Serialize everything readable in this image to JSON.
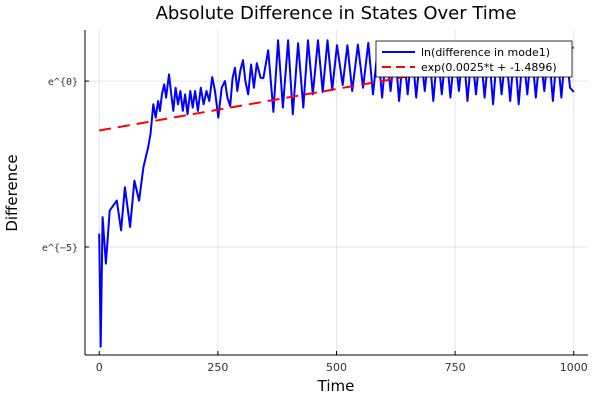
{
  "chart_data": {
    "type": "line",
    "title": "Absolute Difference in States Over Time",
    "xlabel": "Time",
    "ylabel": "Difference",
    "xlim": [
      -30,
      1030
    ],
    "ylim": [
      0.00026,
      4.66
    ],
    "yscale": "log",
    "grid": true,
    "legend_position": "top-right",
    "x_ticks": [
      0,
      250,
      500,
      750,
      1000
    ],
    "x_tick_labels": [
      "0",
      "250",
      "500",
      "750",
      "1000"
    ],
    "y_ticks": [
      1,
      0.006738
    ],
    "y_tick_labels": [
      "e^{0}",
      "e^{−5}"
    ],
    "series": [
      {
        "name": "ln(difference in mode1)",
        "color": "#0000ff",
        "style": "solid",
        "x": [
          0,
          3,
          7,
          14,
          22,
          37,
          46,
          54,
          65,
          74,
          84,
          93,
          103,
          108,
          114,
          119,
          124,
          128,
          132,
          137,
          141,
          147,
          151,
          156,
          161,
          166,
          171,
          176,
          181,
          186,
          192,
          197,
          202,
          208,
          214,
          220,
          226,
          232,
          238,
          244,
          251,
          258,
          265,
          270,
          276,
          281,
          286,
          291,
          297,
          303,
          308,
          314,
          320,
          326,
          332,
          340,
          346,
          356,
          367,
          377,
          387,
          398,
          408,
          419,
          430,
          440,
          450,
          461,
          471,
          481,
          491,
          501,
          513,
          523,
          533,
          545,
          556,
          567,
          577,
          587,
          596,
          605,
          614,
          623,
          632,
          641,
          650,
          659,
          668,
          677,
          686,
          695,
          704,
          713,
          722,
          731,
          740,
          749,
          758,
          767,
          776,
          785,
          794,
          803,
          812,
          821,
          830,
          839,
          848,
          857,
          866,
          875,
          884,
          893,
          902,
          911,
          920,
          929,
          938,
          947,
          956,
          965,
          974,
          983,
          992,
          1000
        ],
        "y": [
          0.0101,
          0.000335,
          0.0166,
          0.00409,
          0.0202,
          0.0273,
          0.0111,
          0.0408,
          0.0123,
          0.0498,
          0.0273,
          0.0743,
          0.135,
          0.202,
          0.497,
          0.333,
          0.549,
          0.407,
          0.67,
          0.905,
          0.607,
          1.221,
          0.741,
          0.407,
          0.819,
          0.497,
          0.741,
          0.407,
          0.67,
          0.368,
          0.741,
          0.449,
          0.741,
          0.407,
          0.819,
          0.497,
          0.741,
          0.549,
          1.127,
          0.741,
          0.333,
          0.819,
          1.0,
          0.607,
          0.472,
          1.105,
          1.492,
          0.741,
          1.35,
          1.878,
          1.0,
          0.67,
          1.649,
          0.819,
          1.716,
          1.105,
          1.094,
          2.535,
          0.395,
          3.421,
          0.449,
          3.421,
          0.368,
          3.127,
          0.449,
          3.421,
          0.67,
          3.421,
          0.719,
          3.421,
          0.763,
          2.945,
          0.887,
          2.945,
          0.741,
          3.004,
          0.819,
          3.158,
          0.67,
          2.718,
          0.607,
          2.46,
          0.741,
          2.718,
          0.549,
          2.46,
          0.67,
          2.718,
          0.607,
          2.46,
          0.741,
          2.718,
          0.549,
          2.46,
          0.67,
          2.718,
          0.607,
          2.46,
          0.741,
          2.718,
          0.549,
          2.46,
          0.67,
          2.718,
          0.607,
          2.46,
          0.497,
          2.718,
          0.67,
          2.46,
          0.549,
          2.718,
          0.497,
          2.46,
          0.67,
          2.718,
          0.607,
          2.46,
          0.741,
          2.718,
          0.549,
          2.46,
          0.607,
          3.004,
          0.819,
          0.719
        ]
      },
      {
        "name": "exp(0.0025*t + -1.4896)",
        "color": "#ff0000",
        "style": "dashed",
        "x": [
          0,
          1000
        ],
        "y": [
          0.2255,
          2.747
        ]
      }
    ]
  }
}
